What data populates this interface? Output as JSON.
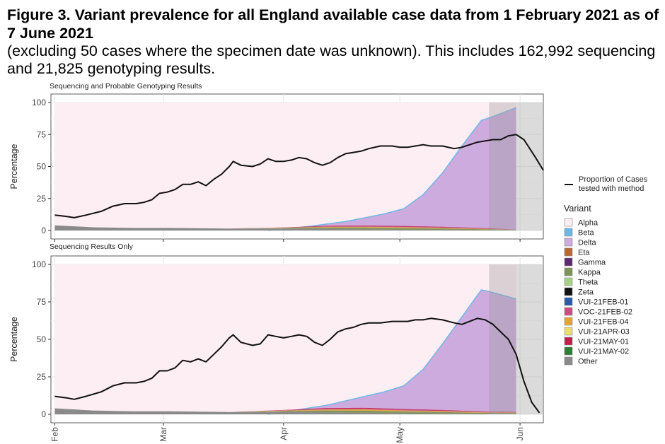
{
  "figure": {
    "title": "Figure 3. Variant prevalence for all England available case data from 1 February 2021 as of 7 June 2021",
    "subtitle": "(excluding 50 cases where the specimen date was unknown).  This includes 162,992 sequencing and 21,825 genotyping results."
  },
  "legend": {
    "line_label_1": "Proportion of Cases",
    "line_label_2": "tested with method",
    "variant_title": "Variant",
    "variants": [
      {
        "name": "Alpha",
        "color": "#fdeef3"
      },
      {
        "name": "Beta",
        "color": "#6cb7e6"
      },
      {
        "name": "Delta",
        "color": "#cdabde"
      },
      {
        "name": "Eta",
        "color": "#b86a35"
      },
      {
        "name": "Gamma",
        "color": "#5c2b6e"
      },
      {
        "name": "Kappa",
        "color": "#7d9457"
      },
      {
        "name": "Theta",
        "color": "#a6d186"
      },
      {
        "name": "Zeta",
        "color": "#111111"
      },
      {
        "name": "VUI-21FEB-01",
        "color": "#2a5aa8"
      },
      {
        "name": "VOC-21FEB-02",
        "color": "#c94e7f"
      },
      {
        "name": "VUI-21FEB-04",
        "color": "#e0a736"
      },
      {
        "name": "VUI-21APR-03",
        "color": "#e9df6b"
      },
      {
        "name": "VUI-21MAY-01",
        "color": "#c41e4a"
      },
      {
        "name": "VUI-21MAY-02",
        "color": "#2e7d32"
      },
      {
        "name": "Other",
        "color": "#8a8a8a"
      }
    ]
  },
  "chart_data": [
    {
      "type": "area",
      "title": "Sequencing and Probable Genotyping Results",
      "xlabel": "",
      "ylabel": "Percentage",
      "ylim": [
        0,
        100
      ],
      "yticks": [
        0,
        25,
        50,
        75,
        100
      ],
      "xticks": [
        {
          "label": "Feb",
          "day": 0
        },
        {
          "label": "Mar",
          "day": 28
        },
        {
          "label": "Apr",
          "day": 59
        },
        {
          "label": "May",
          "day": 89
        },
        {
          "label": "Jun",
          "day": 120
        }
      ],
      "xlim": [
        -1,
        126
      ],
      "incomplete_shading_days": [
        [
          112,
          119
        ],
        [
          119,
          126
        ]
      ],
      "alpha_background": [
        0,
        119
      ],
      "other_stack": {
        "days": [
          0,
          10,
          20,
          30,
          45,
          60,
          75,
          90,
          105,
          112,
          119
        ],
        "values": [
          4,
          2.5,
          2,
          2,
          1.5,
          1.5,
          1,
          0.5,
          0.3,
          0.2,
          0.1
        ]
      },
      "variant_stack": {
        "days": [
          45,
          60,
          70,
          80,
          90,
          100,
          112,
          119
        ],
        "values": [
          0,
          1,
          2.5,
          3,
          3,
          2.5,
          1.5,
          0.5
        ]
      },
      "delta_area": {
        "days": [
          55,
          60,
          65,
          70,
          75,
          80,
          85,
          90,
          95,
          100,
          105,
          110,
          112,
          119
        ],
        "values": [
          0,
          1.5,
          3,
          5,
          7,
          10,
          13,
          17,
          28,
          45,
          66,
          86,
          88,
          96
        ]
      },
      "proportion_line": {
        "days": [
          0,
          3,
          5,
          8,
          12,
          15,
          18,
          21,
          23,
          25,
          27,
          29,
          31,
          33,
          35,
          37,
          39,
          41,
          43,
          45,
          46,
          48,
          51,
          53,
          55,
          57,
          59,
          61,
          63,
          65,
          67,
          69,
          71,
          73,
          75,
          77,
          79,
          81,
          84,
          87,
          89,
          91,
          93,
          95,
          97,
          100,
          103,
          105,
          107,
          109,
          111,
          113,
          115,
          117,
          119,
          121,
          124,
          126
        ],
        "values": [
          12,
          11,
          10,
          12,
          15,
          19,
          21,
          21,
          22,
          24,
          29,
          30,
          32,
          36,
          36,
          38,
          35,
          40,
          44,
          50,
          54,
          51,
          50,
          52,
          56,
          54,
          54,
          55,
          57,
          56,
          53,
          51,
          53,
          57,
          60,
          61,
          62,
          64,
          66,
          66,
          65,
          65,
          66,
          67,
          66,
          66,
          64,
          65,
          67,
          69,
          70,
          71,
          71,
          74,
          75,
          71,
          57,
          47
        ]
      }
    },
    {
      "type": "area",
      "title": "Sequencing Results Only",
      "xlabel": "",
      "ylabel": "Percentage",
      "ylim": [
        0,
        100
      ],
      "yticks": [
        0,
        25,
        50,
        75,
        100
      ],
      "xticks": [
        {
          "label": "Feb",
          "day": 0
        },
        {
          "label": "Mar",
          "day": 28
        },
        {
          "label": "Apr",
          "day": 59
        },
        {
          "label": "May",
          "day": 89
        },
        {
          "label": "Jun",
          "day": 120
        }
      ],
      "xlim": [
        -1,
        126
      ],
      "incomplete_shading_days": [
        [
          112,
          119
        ],
        [
          119,
          126
        ]
      ],
      "alpha_background": [
        0,
        119
      ],
      "other_stack": {
        "days": [
          0,
          10,
          20,
          30,
          45,
          60,
          75,
          90,
          105,
          112,
          119
        ],
        "values": [
          4,
          2.5,
          2,
          2,
          1.5,
          1.5,
          1,
          0.5,
          0.3,
          0.2,
          0.1
        ]
      },
      "variant_stack": {
        "days": [
          45,
          60,
          70,
          80,
          90,
          100,
          112,
          119
        ],
        "values": [
          0,
          1.5,
          3,
          3.5,
          3,
          2.5,
          1.5,
          1.5
        ]
      },
      "delta_area": {
        "days": [
          55,
          60,
          65,
          70,
          75,
          80,
          85,
          90,
          95,
          100,
          105,
          110,
          112,
          119
        ],
        "values": [
          0,
          2,
          4,
          6,
          9,
          12,
          15,
          19,
          30,
          47,
          65,
          83,
          82,
          77
        ]
      },
      "proportion_line": {
        "days": [
          0,
          3,
          5,
          8,
          12,
          15,
          18,
          21,
          23,
          25,
          27,
          29,
          31,
          33,
          35,
          37,
          39,
          41,
          43,
          45,
          46,
          48,
          51,
          53,
          55,
          57,
          59,
          61,
          63,
          65,
          67,
          69,
          71,
          73,
          75,
          77,
          79,
          81,
          84,
          87,
          89,
          91,
          93,
          95,
          97,
          100,
          103,
          105,
          107,
          109,
          111,
          113,
          115,
          117,
          119,
          121,
          123,
          125
        ],
        "values": [
          12,
          11,
          10,
          12,
          15,
          19,
          21,
          21,
          22,
          24,
          29,
          29,
          31,
          36,
          35,
          37,
          35,
          40,
          45,
          51,
          53,
          48,
          46,
          47,
          53,
          52,
          51,
          52,
          53,
          52,
          48,
          46,
          50,
          55,
          57,
          58,
          60,
          61,
          61,
          62,
          62,
          62,
          63,
          63,
          64,
          63,
          61,
          60,
          62,
          64,
          63,
          60,
          55,
          50,
          40,
          22,
          8,
          1
        ]
      }
    }
  ]
}
